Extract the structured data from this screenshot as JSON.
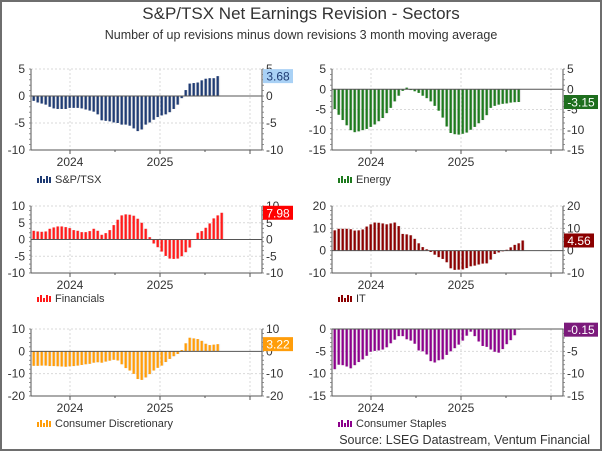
{
  "title": "S&P/TSX Net Earnings Revision - Sectors",
  "subtitle": "Number of up revisions minus down revisions 3 month moving average",
  "source": "Source: LSEG Datastream, Ventum Financial",
  "chart_data": [
    {
      "type": "bar",
      "name": "S&P/TSX",
      "color": "#1f3b73",
      "badge_color": "#a9d1f5",
      "badge_text_color": "#1f3b73",
      "latest_label": "3.68",
      "ylim": [
        -10,
        5
      ],
      "yticks": [
        5,
        0,
        -5,
        -10
      ],
      "xtick_labels": [
        "2024",
        "2025"
      ],
      "values": [
        -0.9,
        -1.2,
        -1.4,
        -1.6,
        -2.0,
        -2.3,
        -2.4,
        -2.4,
        -2.4,
        -2.2,
        -2.2,
        -2.2,
        -2.3,
        -2.5,
        -2.7,
        -2.9,
        -3.4,
        -4.5,
        -4.6,
        -4.7,
        -4.9,
        -5.0,
        -5.3,
        -5.3,
        -5.5,
        -6.0,
        -6.5,
        -6.2,
        -5.3,
        -4.9,
        -4.4,
        -3.9,
        -3.6,
        -3.4,
        -3.0,
        -2.4,
        -1.6,
        -0.4,
        1.1,
        2.3,
        2.4,
        2.5,
        2.9,
        3.2,
        3.3,
        3.3,
        3.68
      ]
    },
    {
      "type": "bar",
      "name": "Energy",
      "color": "#1e7a1e",
      "badge_color": "#1e6e1e",
      "badge_text_color": "#ffffff",
      "latest_label": "-3.15",
      "ylim": [
        -15,
        5
      ],
      "yticks": [
        5,
        0,
        -5,
        -10,
        -15
      ],
      "xtick_labels": [
        "2024",
        "2025"
      ],
      "values": [
        -4.9,
        -6.3,
        -7.6,
        -8.9,
        -10.1,
        -10.6,
        -10.4,
        -10.1,
        -9.8,
        -9.3,
        -8.7,
        -7.9,
        -7.1,
        -5.9,
        -4.6,
        -3.0,
        -1.6,
        -0.4,
        0.4,
        -0.2,
        -0.5,
        -0.9,
        -1.6,
        -2.2,
        -3.0,
        -4.1,
        -5.3,
        -7.0,
        -9.2,
        -10.8,
        -11.1,
        -11.2,
        -11.0,
        -10.7,
        -10.0,
        -9.3,
        -8.4,
        -7.6,
        -6.4,
        -4.6,
        -4.1,
        -3.8,
        -3.6,
        -3.5,
        -3.3,
        -3.2,
        -3.15
      ]
    },
    {
      "type": "bar",
      "name": "Financials",
      "color": "#ff1a1a",
      "badge_color": "#ff0000",
      "badge_text_color": "#ffffff",
      "latest_label": "7.98",
      "ylim": [
        -10,
        10
      ],
      "yticks": [
        10,
        5,
        0,
        -5,
        -10
      ],
      "xtick_labels": [
        "2024",
        "2025"
      ],
      "values": [
        2.6,
        2.4,
        2.3,
        2.4,
        3.2,
        3.6,
        3.9,
        3.9,
        3.7,
        3.4,
        2.8,
        2.6,
        2.2,
        2.2,
        2.5,
        3.2,
        2.6,
        1.4,
        1.9,
        2.8,
        4.3,
        5.9,
        7.2,
        7.5,
        7.4,
        7.1,
        6.2,
        5.0,
        3.2,
        0.7,
        -1.2,
        -2.3,
        -3.6,
        -4.9,
        -5.7,
        -5.8,
        -5.7,
        -5.0,
        -3.8,
        -2.4,
        0,
        2.0,
        2.5,
        3.5,
        4.8,
        6.3,
        7.2,
        7.98
      ]
    },
    {
      "type": "bar",
      "name": "IT",
      "color": "#8b0000",
      "badge_color": "#8b0000",
      "badge_text_color": "#ffffff",
      "latest_label": "4.56",
      "ylim": [
        -10,
        20
      ],
      "yticks": [
        20,
        10,
        0,
        -10
      ],
      "xtick_labels": [
        "2024",
        "2025"
      ],
      "values": [
        9.1,
        9.8,
        9.8,
        9.8,
        9.6,
        9.0,
        9.1,
        9.5,
        10.8,
        11.8,
        12.6,
        12.5,
        12.2,
        11.8,
        12.2,
        12.6,
        11.0,
        7.5,
        7.3,
        6.9,
        5.3,
        3.3,
        1.6,
        0.6,
        -0.6,
        -1.8,
        -2.9,
        -3.7,
        -5.2,
        -7.9,
        -8.6,
        -8.5,
        -8.4,
        -7.8,
        -7.0,
        -6.7,
        -6.2,
        -5.8,
        -5.7,
        -4.0,
        -1.5,
        -0.8,
        -0.3,
        0.4,
        1.5,
        2.6,
        3.3,
        4.56
      ]
    },
    {
      "type": "bar",
      "name": "Consumer Discretionary",
      "color": "#ff9d0a",
      "badge_color": "#ff9d0a",
      "badge_text_color": "#ffffff",
      "latest_label": "3.22",
      "ylim": [
        -20,
        10
      ],
      "yticks": [
        10,
        0,
        -10,
        -20
      ],
      "xtick_labels": [
        "2024",
        "2025"
      ],
      "values": [
        -6.5,
        -6.5,
        -6.4,
        -6.4,
        -6.6,
        -6.6,
        -6.7,
        -6.8,
        -6.9,
        -6.7,
        -6.6,
        -6.4,
        -6.1,
        -5.8,
        -5.6,
        -5.1,
        -4.9,
        -5.1,
        -4.6,
        -4.2,
        -3.8,
        -4.1,
        -5.8,
        -7.5,
        -8.6,
        -10.1,
        -12.4,
        -12.8,
        -11.7,
        -10.2,
        -8.6,
        -7.4,
        -6.4,
        -4.8,
        -3.4,
        -2.2,
        -1.2,
        0.6,
        3.6,
        6.1,
        5.8,
        5.5,
        4.7,
        3.4,
        2.8,
        3.0,
        3.22
      ]
    },
    {
      "type": "bar",
      "name": "Consumer Staples",
      "color": "#8b008b",
      "badge_color": "#7b1a7b",
      "badge_text_color": "#ffffff",
      "latest_label": "-0.15",
      "ylim": [
        -15,
        0
      ],
      "yticks": [
        0,
        -5,
        -10,
        -15
      ],
      "xtick_labels": [
        "2024",
        "2025"
      ],
      "values": [
        -9.0,
        -8.0,
        -8.1,
        -8.4,
        -8.8,
        -8.1,
        -7.4,
        -6.8,
        -6.0,
        -5.1,
        -4.9,
        -4.8,
        -4.6,
        -4.1,
        -3.2,
        -2.4,
        -1.6,
        -1.6,
        -2.3,
        -2.6,
        -3.3,
        -4.8,
        -5.0,
        -5.7,
        -7.2,
        -7.5,
        -7.0,
        -6.8,
        -5.8,
        -5.0,
        -4.3,
        -3.5,
        -2.6,
        -1.5,
        -0.6,
        -1.6,
        -2.8,
        -3.8,
        -4.0,
        -4.6,
        -5.1,
        -5.3,
        -4.5,
        -3.4,
        -2.5,
        -1.4,
        -0.15
      ]
    }
  ]
}
